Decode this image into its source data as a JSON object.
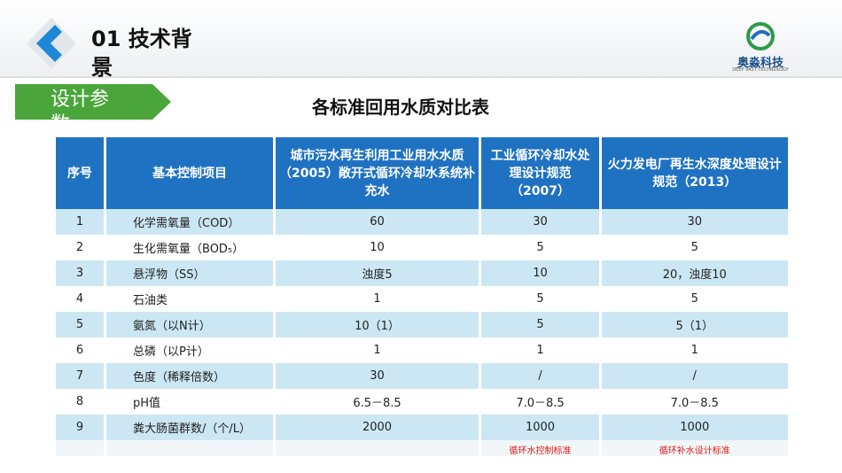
{
  "header": {
    "title": "01 技术背景",
    "logo_name": "奥淼科技",
    "logo_subtitle": "DEEP VAST TECHNOLOGY"
  },
  "section_tag": "设计参数",
  "table": {
    "title": "各标准回用水质对比表",
    "columns": [
      "序号",
      "基本控制项目",
      "城市污水再生利用工业用水水质 （2005）敞开式循环冷却水系统补充水",
      "工业循环冷却水处理设计规范（2007）",
      "火力发电厂再生水深度处理设计规范（2013）"
    ],
    "rows": [
      [
        "1",
        "化学需氧量（COD）",
        "60",
        "30",
        "30"
      ],
      [
        "2",
        "生化需氧量（BOD₅）",
        "10",
        "5",
        "5"
      ],
      [
        "3",
        "悬浮物（SS）",
        "浊度5",
        "10",
        "20，浊度10"
      ],
      [
        "4",
        "石油类",
        "1",
        "5",
        "5"
      ],
      [
        "5",
        "氨氮（以N计）",
        "10（1）",
        "5",
        "5（1）"
      ],
      [
        "6",
        "总磷（以P计）",
        "1",
        "1",
        "1"
      ],
      [
        "7",
        "色度（稀释倍数）",
        "30",
        "/",
        "/"
      ],
      [
        "8",
        "pH值",
        "6.5－8.5",
        "7.0－8.5",
        "7.0－8.5"
      ],
      [
        "9",
        "粪大肠菌群数/（个/L）",
        "2000",
        "1000",
        "1000"
      ]
    ],
    "notes": [
      "循环水控制标准",
      "循环补水设计标准"
    ]
  }
}
